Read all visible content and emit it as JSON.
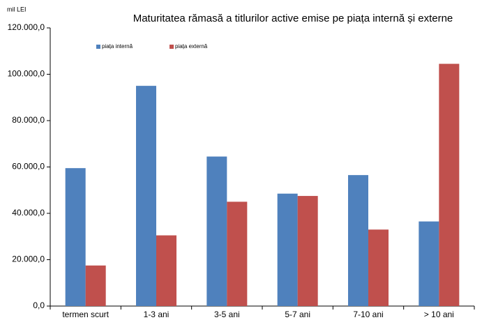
{
  "chart_data": {
    "type": "bar",
    "title": "Maturitatea rămasă a titlurilor active emise pe piața internă și externe",
    "y_label": "mil LEI",
    "categories": [
      "termen scurt",
      "1-3 ani",
      "3-5 ani",
      "5-7 ani",
      "7-10 ani",
      "> 10 ani"
    ],
    "series": [
      {
        "name": "piața internă",
        "color": "#4f81bd",
        "values": [
          59500,
          95000,
          64500,
          48500,
          56500,
          36500
        ]
      },
      {
        "name": "piața externă",
        "color": "#c0504d",
        "values": [
          17500,
          30500,
          45000,
          47500,
          33000,
          104500
        ]
      }
    ],
    "ylim": [
      0,
      120000
    ],
    "yticks": [
      {
        "value": 0,
        "label": "0,0"
      },
      {
        "value": 20000,
        "label": "20.000,0"
      },
      {
        "value": 40000,
        "label": "40.000,0"
      },
      {
        "value": 60000,
        "label": "60.000,0"
      },
      {
        "value": 80000,
        "label": "80.000,0"
      },
      {
        "value": 100000,
        "label": "100.000,0"
      },
      {
        "value": 120000,
        "label": "120.000,0"
      }
    ],
    "grid": false,
    "legend": "top-left"
  }
}
